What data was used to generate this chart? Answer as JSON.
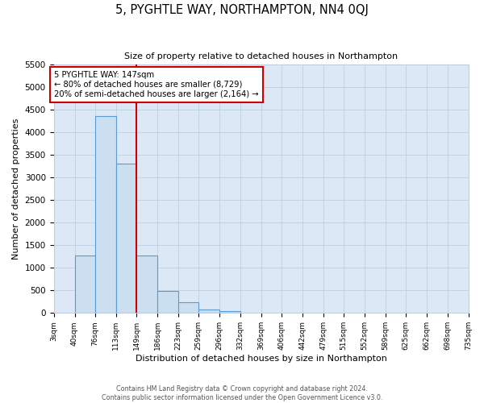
{
  "title": "5, PYGHTLE WAY, NORTHAMPTON, NN4 0QJ",
  "subtitle": "Size of property relative to detached houses in Northampton",
  "xlabel": "Distribution of detached houses by size in Northampton",
  "ylabel": "Number of detached properties",
  "footer_line1": "Contains HM Land Registry data © Crown copyright and database right 2024.",
  "footer_line2": "Contains public sector information licensed under the Open Government Licence v3.0.",
  "bin_edges": [
    3,
    40,
    76,
    113,
    149,
    186,
    223,
    259,
    296,
    332,
    369,
    406,
    442,
    479,
    515,
    552,
    589,
    625,
    662,
    698,
    735
  ],
  "bin_labels": [
    "3sqm",
    "40sqm",
    "76sqm",
    "113sqm",
    "149sqm",
    "186sqm",
    "223sqm",
    "259sqm",
    "296sqm",
    "332sqm",
    "369sqm",
    "406sqm",
    "442sqm",
    "479sqm",
    "515sqm",
    "552sqm",
    "589sqm",
    "625sqm",
    "662sqm",
    "698sqm",
    "735sqm"
  ],
  "bar_heights": [
    0,
    1270,
    4350,
    3300,
    1270,
    480,
    235,
    85,
    40,
    0,
    0,
    0,
    0,
    0,
    0,
    0,
    0,
    0,
    0,
    0
  ],
  "bar_color": "#ccdff0",
  "bar_edge_color": "#5b9bd5",
  "property_line_x": 149,
  "property_line_color": "#cc0000",
  "annotation_title": "5 PYGHTLE WAY: 147sqm",
  "annotation_line1": "← 80% of detached houses are smaller (8,729)",
  "annotation_line2": "20% of semi-detached houses are larger (2,164) →",
  "annotation_box_facecolor": "white",
  "annotation_box_edgecolor": "#cc0000",
  "ylim": [
    0,
    5500
  ],
  "yticks": [
    0,
    500,
    1000,
    1500,
    2000,
    2500,
    3000,
    3500,
    4000,
    4500,
    5000,
    5500
  ],
  "grid_color": "#c0cfe0",
  "plot_bg": "#dce8f5",
  "fig_bg": "white"
}
